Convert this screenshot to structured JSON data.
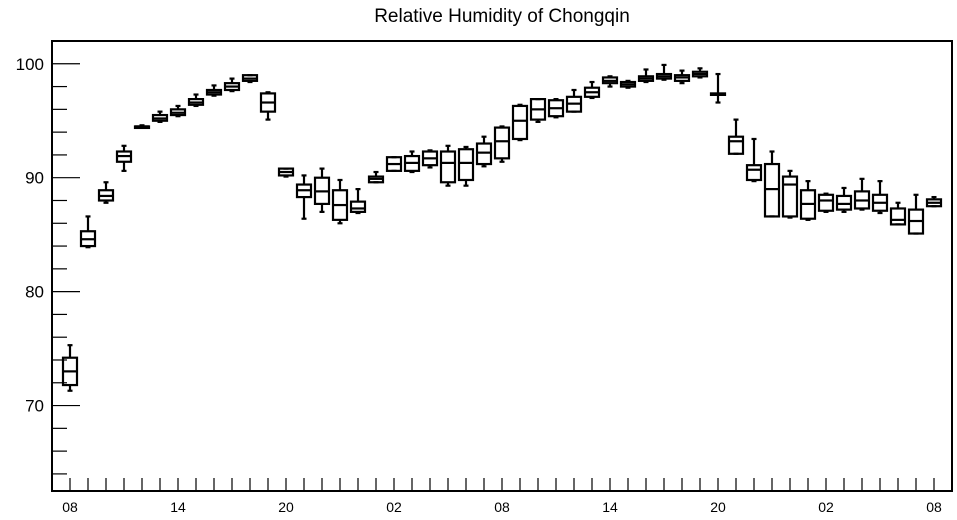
{
  "chart_data": {
    "type": "box",
    "title": "Relative Humidity of Chongqin",
    "xlabel": "",
    "ylabel": "",
    "ylim": [
      62.5,
      102
    ],
    "xlim": [
      0,
      49
    ],
    "grid": false,
    "y_ticks": [
      70,
      80,
      90,
      100
    ],
    "x_tick_labels": [
      {
        "x": 1,
        "label": "08"
      },
      {
        "x": 7,
        "label": "14"
      },
      {
        "x": 13,
        "label": "20"
      },
      {
        "x": 19,
        "label": "02"
      },
      {
        "x": 25,
        "label": "08"
      },
      {
        "x": 31,
        "label": "14"
      },
      {
        "x": 37,
        "label": "20"
      },
      {
        "x": 43,
        "label": "02"
      },
      {
        "x": 49,
        "label": "08"
      }
    ],
    "boxes": [
      {
        "x": 1,
        "low": 71.3,
        "q1": 71.8,
        "median": 73.0,
        "q3": 74.2,
        "high": 75.3
      },
      {
        "x": 2,
        "low": 83.9,
        "q1": 84.0,
        "median": 84.6,
        "q3": 85.3,
        "high": 86.6
      },
      {
        "x": 3,
        "low": 87.8,
        "q1": 88.0,
        "median": 88.4,
        "q3": 88.9,
        "high": 89.6
      },
      {
        "x": 4,
        "low": 90.6,
        "q1": 91.4,
        "median": 91.9,
        "q3": 92.3,
        "high": 92.8
      },
      {
        "x": 5,
        "low": 94.4,
        "q1": 94.4,
        "median": 94.5,
        "q3": 94.5,
        "high": 94.6
      },
      {
        "x": 6,
        "low": 94.9,
        "q1": 95.0,
        "median": 95.2,
        "q3": 95.5,
        "high": 95.8
      },
      {
        "x": 7,
        "low": 95.4,
        "q1": 95.5,
        "median": 95.7,
        "q3": 96.0,
        "high": 96.3
      },
      {
        "x": 8,
        "low": 96.3,
        "q1": 96.4,
        "median": 96.6,
        "q3": 96.9,
        "high": 97.3
      },
      {
        "x": 9,
        "low": 97.2,
        "q1": 97.3,
        "median": 97.5,
        "q3": 97.7,
        "high": 98.1
      },
      {
        "x": 10,
        "low": 97.6,
        "q1": 97.7,
        "median": 98.0,
        "q3": 98.3,
        "high": 98.7
      },
      {
        "x": 11,
        "low": 98.4,
        "q1": 98.5,
        "median": 98.7,
        "q3": 99.0,
        "high": 99.0
      },
      {
        "x": 12,
        "low": 95.1,
        "q1": 95.8,
        "median": 96.6,
        "q3": 97.4,
        "high": 97.5
      },
      {
        "x": 13,
        "low": 90.1,
        "q1": 90.2,
        "median": 90.5,
        "q3": 90.8,
        "high": 90.8
      },
      {
        "x": 14,
        "low": 86.4,
        "q1": 88.3,
        "median": 88.9,
        "q3": 89.4,
        "high": 90.2
      },
      {
        "x": 15,
        "low": 87.0,
        "q1": 87.7,
        "median": 88.8,
        "q3": 90.0,
        "high": 90.8
      },
      {
        "x": 16,
        "low": 86.0,
        "q1": 86.3,
        "median": 87.6,
        "q3": 88.9,
        "high": 89.8
      },
      {
        "x": 17,
        "low": 86.9,
        "q1": 87.0,
        "median": 87.3,
        "q3": 87.9,
        "high": 89.0
      },
      {
        "x": 18,
        "low": 89.6,
        "q1": 89.6,
        "median": 89.9,
        "q3": 90.1,
        "high": 90.5
      },
      {
        "x": 19,
        "low": 90.6,
        "q1": 90.6,
        "median": 91.2,
        "q3": 91.8,
        "high": 91.8
      },
      {
        "x": 20,
        "low": 90.5,
        "q1": 90.6,
        "median": 91.3,
        "q3": 91.9,
        "high": 92.3
      },
      {
        "x": 21,
        "low": 90.9,
        "q1": 91.1,
        "median": 91.7,
        "q3": 92.3,
        "high": 92.4
      },
      {
        "x": 22,
        "low": 89.3,
        "q1": 89.6,
        "median": 91.3,
        "q3": 92.3,
        "high": 92.8
      },
      {
        "x": 23,
        "low": 89.3,
        "q1": 89.8,
        "median": 91.3,
        "q3": 92.5,
        "high": 92.7
      },
      {
        "x": 24,
        "low": 91.0,
        "q1": 91.2,
        "median": 92.2,
        "q3": 93.0,
        "high": 93.6
      },
      {
        "x": 25,
        "low": 91.4,
        "q1": 91.7,
        "median": 93.2,
        "q3": 94.4,
        "high": 94.5
      },
      {
        "x": 26,
        "low": 93.3,
        "q1": 93.4,
        "median": 95.0,
        "q3": 96.3,
        "high": 96.4
      },
      {
        "x": 27,
        "low": 94.9,
        "q1": 95.1,
        "median": 96.0,
        "q3": 96.9,
        "high": 96.9
      },
      {
        "x": 28,
        "low": 95.3,
        "q1": 95.4,
        "median": 96.1,
        "q3": 96.8,
        "high": 96.9
      },
      {
        "x": 29,
        "low": 95.8,
        "q1": 95.8,
        "median": 96.5,
        "q3": 97.1,
        "high": 97.7
      },
      {
        "x": 30,
        "low": 97.0,
        "q1": 97.1,
        "median": 97.5,
        "q3": 97.9,
        "high": 98.4
      },
      {
        "x": 31,
        "low": 98.0,
        "q1": 98.3,
        "median": 98.5,
        "q3": 98.8,
        "high": 98.9
      },
      {
        "x": 32,
        "low": 97.9,
        "q1": 98.0,
        "median": 98.2,
        "q3": 98.4,
        "high": 98.5
      },
      {
        "x": 33,
        "low": 98.4,
        "q1": 98.5,
        "median": 98.7,
        "q3": 98.9,
        "high": 99.5
      },
      {
        "x": 34,
        "low": 98.6,
        "q1": 98.7,
        "median": 98.9,
        "q3": 99.1,
        "high": 99.9
      },
      {
        "x": 35,
        "low": 98.3,
        "q1": 98.5,
        "median": 98.8,
        "q3": 99.0,
        "high": 99.4
      },
      {
        "x": 36,
        "low": 98.8,
        "q1": 98.9,
        "median": 99.1,
        "q3": 99.3,
        "high": 99.6
      },
      {
        "x": 37,
        "low": 96.6,
        "q1": 97.3,
        "median": 97.3,
        "q3": 97.4,
        "high": 99.1
      },
      {
        "x": 38,
        "low": 92.1,
        "q1": 92.1,
        "median": 93.2,
        "q3": 93.6,
        "high": 95.1
      },
      {
        "x": 39,
        "low": 89.7,
        "q1": 89.8,
        "median": 90.7,
        "q3": 91.1,
        "high": 93.4
      },
      {
        "x": 40,
        "low": 86.6,
        "q1": 86.6,
        "median": 89.0,
        "q3": 91.2,
        "high": 92.3
      },
      {
        "x": 41,
        "low": 86.5,
        "q1": 86.6,
        "median": 89.4,
        "q3": 90.1,
        "high": 90.6
      },
      {
        "x": 42,
        "low": 86.3,
        "q1": 86.4,
        "median": 87.7,
        "q3": 88.9,
        "high": 89.7
      },
      {
        "x": 43,
        "low": 87.0,
        "q1": 87.1,
        "median": 88.0,
        "q3": 88.5,
        "high": 88.6
      },
      {
        "x": 44,
        "low": 87.0,
        "q1": 87.2,
        "median": 87.7,
        "q3": 88.4,
        "high": 89.1
      },
      {
        "x": 45,
        "low": 87.2,
        "q1": 87.3,
        "median": 88.0,
        "q3": 88.8,
        "high": 89.9
      },
      {
        "x": 46,
        "low": 86.9,
        "q1": 87.1,
        "median": 87.8,
        "q3": 88.5,
        "high": 89.7
      },
      {
        "x": 47,
        "low": 85.9,
        "q1": 85.9,
        "median": 86.3,
        "q3": 87.3,
        "high": 87.8
      },
      {
        "x": 48,
        "low": 85.1,
        "q1": 85.1,
        "median": 86.2,
        "q3": 87.2,
        "high": 88.5
      },
      {
        "x": 49,
        "low": 87.5,
        "q1": 87.5,
        "median": 87.8,
        "q3": 88.1,
        "high": 88.3
      }
    ]
  }
}
